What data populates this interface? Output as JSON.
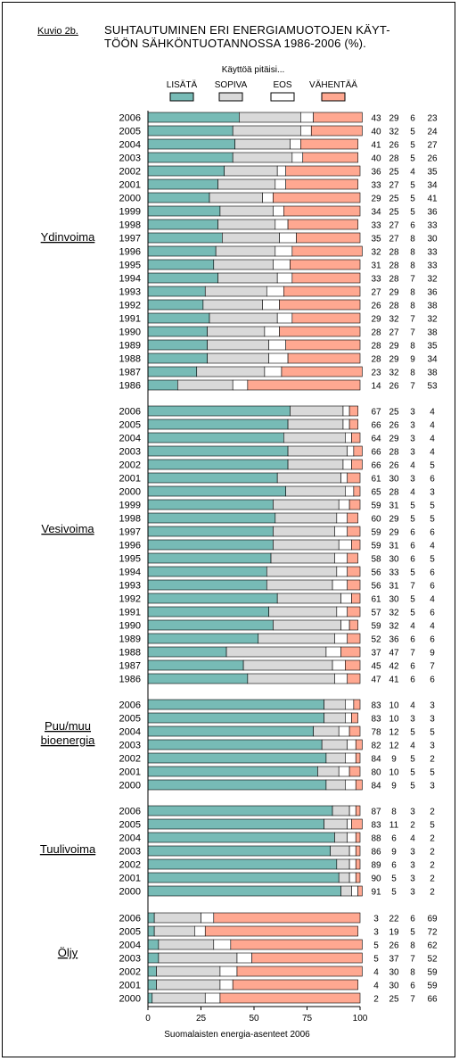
{
  "figure_label": "Kuvio 2b.",
  "title": "SUHTAUTUMINEN ERI ENERGIAMUOTOJEN KÄYTTÖÖN SÄHKÖNTUOTANNOSSA 1986-2006 (%).",
  "title_lines": [
    "SUHTAUTUMINEN ERI ENERGIAMUOTOJEN KÄYT-",
    "TÖÖN SÄHKÖNTUOTANNOSSA 1986-2006 (%)."
  ],
  "colors": {
    "lisata": "#77bbb6",
    "sopiva": "#d9d9d9",
    "eos": "#ffffff",
    "vahentaa": "#ffa891"
  },
  "chart_data": {
    "type": "bar",
    "orientation": "horizontal-stacked-100",
    "legend_title": "Käyttöä pitäisi...",
    "legend_placement": "top",
    "series_names": [
      "LISÄTÄ",
      "SOPIVA",
      "EOS",
      "VÄHENTÄÄ"
    ],
    "xlabel": "Suomalaisten energia-asenteet 2006",
    "xlim": [
      0,
      100
    ],
    "xticks": [
      "0",
      "25",
      "50",
      "75",
      "100"
    ],
    "groups": [
      {
        "name": "Ydinvoima",
        "rows": [
          {
            "year": "2006",
            "values": [
              43,
              29,
              6,
              23
            ]
          },
          {
            "year": "2005",
            "values": [
              40,
              32,
              5,
              24
            ]
          },
          {
            "year": "2004",
            "values": [
              41,
              26,
              5,
              27
            ]
          },
          {
            "year": "2003",
            "values": [
              40,
              28,
              5,
              26
            ]
          },
          {
            "year": "2002",
            "values": [
              36,
              25,
              4,
              35
            ]
          },
          {
            "year": "2001",
            "values": [
              33,
              27,
              5,
              34
            ]
          },
          {
            "year": "2000",
            "values": [
              29,
              25,
              5,
              41
            ]
          },
          {
            "year": "1999",
            "values": [
              34,
              25,
              5,
              36
            ]
          },
          {
            "year": "1998",
            "values": [
              33,
              27,
              6,
              33
            ]
          },
          {
            "year": "1997",
            "values": [
              35,
              27,
              8,
              30
            ]
          },
          {
            "year": "1996",
            "values": [
              32,
              28,
              8,
              33
            ]
          },
          {
            "year": "1995",
            "values": [
              31,
              28,
              8,
              33
            ]
          },
          {
            "year": "1994",
            "values": [
              33,
              28,
              7,
              32
            ]
          },
          {
            "year": "1993",
            "values": [
              27,
              29,
              8,
              36
            ]
          },
          {
            "year": "1992",
            "values": [
              26,
              28,
              8,
              38
            ]
          },
          {
            "year": "1991",
            "values": [
              29,
              32,
              7,
              32
            ]
          },
          {
            "year": "1990",
            "values": [
              28,
              27,
              7,
              38
            ]
          },
          {
            "year": "1989",
            "values": [
              28,
              29,
              8,
              35
            ]
          },
          {
            "year": "1988",
            "values": [
              28,
              29,
              9,
              34
            ]
          },
          {
            "year": "1987",
            "values": [
              23,
              32,
              8,
              38
            ]
          },
          {
            "year": "1986",
            "values": [
              14,
              26,
              7,
              53
            ]
          }
        ]
      },
      {
        "name": "Vesivoima",
        "rows": [
          {
            "year": "2006",
            "values": [
              67,
              25,
              3,
              4
            ]
          },
          {
            "year": "2005",
            "values": [
              66,
              26,
              3,
              4
            ]
          },
          {
            "year": "2004",
            "values": [
              64,
              29,
              3,
              4
            ]
          },
          {
            "year": "2003",
            "values": [
              66,
              28,
              3,
              4
            ]
          },
          {
            "year": "2002",
            "values": [
              66,
              26,
              4,
              5
            ]
          },
          {
            "year": "2001",
            "values": [
              61,
              30,
              3,
              6
            ]
          },
          {
            "year": "2000",
            "values": [
              65,
              28,
              4,
              3
            ]
          },
          {
            "year": "1999",
            "values": [
              59,
              31,
              5,
              5
            ]
          },
          {
            "year": "1998",
            "values": [
              60,
              29,
              5,
              5
            ]
          },
          {
            "year": "1997",
            "values": [
              59,
              29,
              6,
              6
            ]
          },
          {
            "year": "1996",
            "values": [
              59,
              31,
              6,
              4
            ]
          },
          {
            "year": "1995",
            "values": [
              58,
              30,
              6,
              5
            ]
          },
          {
            "year": "1994",
            "values": [
              56,
              33,
              5,
              6
            ]
          },
          {
            "year": "1993",
            "values": [
              56,
              31,
              7,
              6
            ]
          },
          {
            "year": "1992",
            "values": [
              61,
              30,
              5,
              4
            ]
          },
          {
            "year": "1991",
            "values": [
              57,
              32,
              5,
              6
            ]
          },
          {
            "year": "1990",
            "values": [
              59,
              32,
              4,
              4
            ]
          },
          {
            "year": "1989",
            "values": [
              52,
              36,
              6,
              6
            ]
          },
          {
            "year": "1988",
            "values": [
              37,
              47,
              7,
              9
            ]
          },
          {
            "year": "1987",
            "values": [
              45,
              42,
              6,
              7
            ]
          },
          {
            "year": "1986",
            "values": [
              47,
              41,
              6,
              6
            ]
          }
        ]
      },
      {
        "name": "Puu/muu bioenergia",
        "name_lines": [
          "Puu/muu",
          "bioenergia"
        ],
        "rows": [
          {
            "year": "2006",
            "values": [
              83,
              10,
              4,
              3
            ]
          },
          {
            "year": "2005",
            "values": [
              83,
              10,
              3,
              3
            ]
          },
          {
            "year": "2004",
            "values": [
              78,
              12,
              5,
              5
            ]
          },
          {
            "year": "2003",
            "values": [
              82,
              12,
              4,
              3
            ]
          },
          {
            "year": "2002",
            "values": [
              84,
              9,
              5,
              2
            ]
          },
          {
            "year": "2001",
            "values": [
              80,
              10,
              5,
              5
            ]
          },
          {
            "year": "2000",
            "values": [
              84,
              9,
              5,
              3
            ]
          }
        ]
      },
      {
        "name": "Tuulivoima",
        "rows": [
          {
            "year": "2006",
            "values": [
              87,
              8,
              3,
              2
            ]
          },
          {
            "year": "2005",
            "values": [
              83,
              11,
              2,
              5
            ]
          },
          {
            "year": "2004",
            "values": [
              88,
              6,
              4,
              2
            ]
          },
          {
            "year": "2003",
            "values": [
              86,
              9,
              3,
              2
            ]
          },
          {
            "year": "2002",
            "values": [
              89,
              6,
              3,
              2
            ]
          },
          {
            "year": "2001",
            "values": [
              90,
              5,
              3,
              2
            ]
          },
          {
            "year": "2000",
            "values": [
              91,
              5,
              3,
              2
            ]
          }
        ]
      },
      {
        "name": "Öljy",
        "rows": [
          {
            "year": "2006",
            "values": [
              3,
              22,
              6,
              69
            ]
          },
          {
            "year": "2005",
            "values": [
              3,
              19,
              5,
              72
            ]
          },
          {
            "year": "2004",
            "values": [
              5,
              26,
              8,
              62
            ]
          },
          {
            "year": "2003",
            "values": [
              5,
              37,
              7,
              52
            ]
          },
          {
            "year": "2002",
            "values": [
              4,
              30,
              8,
              59
            ]
          },
          {
            "year": "2001",
            "values": [
              4,
              30,
              6,
              59
            ]
          },
          {
            "year": "2000",
            "values": [
              2,
              25,
              7,
              66
            ]
          }
        ]
      }
    ]
  }
}
